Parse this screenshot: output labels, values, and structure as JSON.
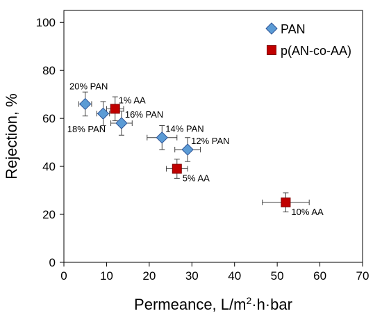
{
  "chart_data": {
    "type": "scatter",
    "title": "",
    "xlabel": "Permeance, L/m²·h·bar",
    "xlabel_parts": {
      "pre": "Permeance, L/m",
      "sup": "2",
      "post": "·h·bar"
    },
    "ylabel": "Rejection, %",
    "xlim": [
      0,
      70
    ],
    "ylim": [
      0,
      105
    ],
    "xticks": [
      0,
      10,
      20,
      30,
      40,
      50,
      60,
      70
    ],
    "yticks": [
      0,
      20,
      40,
      60,
      80,
      100
    ],
    "grid": false,
    "legend_position": "top-right",
    "series": [
      {
        "name": "PAN",
        "marker": "diamond",
        "color": "#5B9BD5",
        "points": [
          {
            "x": 5.0,
            "y": 66,
            "xerr": 1.5,
            "yerr": 5,
            "label": "20% PAN",
            "label_pos": "above-left"
          },
          {
            "x": 9.2,
            "y": 62,
            "xerr": 1.5,
            "yerr": 5,
            "label": "18% PAN",
            "label_pos": "below-left"
          },
          {
            "x": 13.5,
            "y": 58,
            "xerr": 2.5,
            "yerr": 5,
            "label": "16% PAN",
            "label_pos": "above-right"
          },
          {
            "x": 23.0,
            "y": 52,
            "xerr": 3.5,
            "yerr": 5,
            "label": "14% PAN",
            "label_pos": "above-right"
          },
          {
            "x": 29.0,
            "y": 47,
            "xerr": 3.0,
            "yerr": 5,
            "label": "12% PAN",
            "label_pos": "above-right"
          }
        ]
      },
      {
        "name": "p(AN-co-AA)",
        "marker": "square",
        "color": "#C00000",
        "points": [
          {
            "x": 12.0,
            "y": 64,
            "xerr": 2.0,
            "yerr": 5,
            "label": "1% AA",
            "label_pos": "above-right"
          },
          {
            "x": 26.5,
            "y": 39,
            "xerr": 2.5,
            "yerr": 4,
            "label": "5% AA",
            "label_pos": "below-right"
          },
          {
            "x": 52.0,
            "y": 25,
            "xerr": 5.5,
            "yerr": 4,
            "label": "10% AA",
            "label_pos": "below-right"
          }
        ]
      }
    ]
  }
}
